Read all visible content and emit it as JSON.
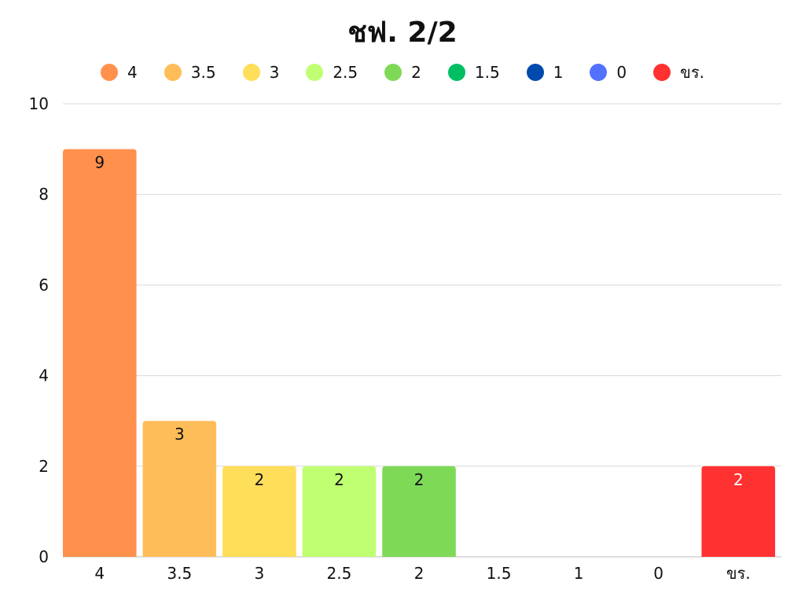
{
  "chart_data": {
    "type": "bar",
    "title": "ชฟ. 2/2",
    "categories": [
      "4",
      "3.5",
      "3",
      "2.5",
      "2",
      "1.5",
      "1",
      "0",
      "ขร."
    ],
    "values": [
      9,
      3,
      2,
      2,
      2,
      0,
      0,
      0,
      2
    ],
    "colors": [
      "#FF914D",
      "#FFBD59",
      "#FFDE59",
      "#C1FF72",
      "#7ED957",
      "#00BF63",
      "#004AAD",
      "#5271FF",
      "#FF3131"
    ],
    "data_labels": [
      "9",
      "3",
      "2",
      "2",
      "2",
      "",
      "",
      "",
      "2"
    ],
    "legend": [
      "4",
      "3.5",
      "3",
      "2.5",
      "2",
      "1.5",
      "1",
      "0",
      "ขร."
    ],
    "legend_position": "top",
    "ylim": [
      0,
      10
    ],
    "yticks": [
      "0",
      "2",
      "4",
      "6",
      "8",
      "10"
    ],
    "grid": true,
    "xlabel": "",
    "ylabel": ""
  }
}
